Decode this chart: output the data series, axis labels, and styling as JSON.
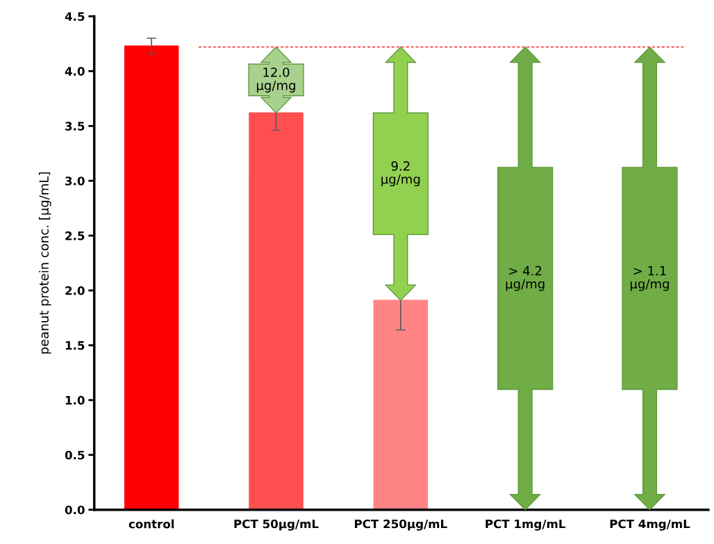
{
  "chart_data": {
    "type": "bar",
    "ylabel": "peanut protein conc. [µg/mL]",
    "categories": [
      "control",
      "PCT 50µg/mL",
      "PCT 250µg/mL",
      "PCT 1mg/mL",
      "PCT 4mg/mL"
    ],
    "values": [
      4.23,
      3.62,
      1.91,
      0,
      0
    ],
    "colors": [
      "#ff0000",
      "#ff4f4f",
      "#ff8585",
      "#ff8585",
      "#ff8585"
    ],
    "errors": [
      0.07,
      0.16,
      0.27,
      null,
      null
    ],
    "ylim": [
      0,
      4.5
    ],
    "yticks": [
      {
        "value": 0,
        "label": "0.0"
      },
      0.5,
      {
        "value": 1,
        "label": "1.0"
      },
      1.5,
      {
        "value": 2,
        "label": "2.0"
      },
      2.5,
      {
        "value": 3,
        "label": "3.0"
      },
      3.5,
      {
        "value": 4,
        "label": "4.0"
      },
      4.5
    ],
    "ref_lines": [
      {
        "axis": "y",
        "value": 4.22,
        "color": "#ff0000",
        "line_style": "dashed"
      }
    ],
    "annotations": [
      "12.0\nµg/mg",
      "9.2\nµg/mg",
      "> 4.2\nµg/mg",
      "> 1.1\nµg/mg"
    ],
    "grid": false,
    "legend": false
  }
}
